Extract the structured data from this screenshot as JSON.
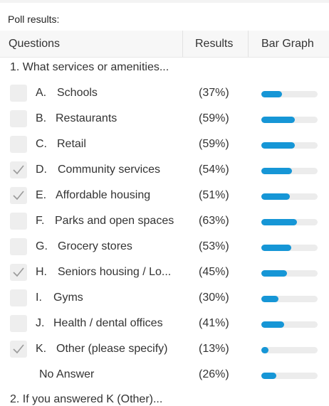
{
  "poll_title": "Poll results:",
  "headers": {
    "questions": "Questions",
    "results": "Results",
    "bar_graph": "Bar Graph"
  },
  "question1": "1.  What services or amenities...",
  "options": [
    {
      "letter": "A.",
      "label": "Schools",
      "percent_text": "(37%)",
      "value": 37,
      "checked": false
    },
    {
      "letter": "B.",
      "label": "Restaurants",
      "percent_text": "(59%)",
      "value": 59,
      "checked": false
    },
    {
      "letter": "C.",
      "label": "Retail",
      "percent_text": "(59%)",
      "value": 59,
      "checked": false
    },
    {
      "letter": "D.",
      "label": "Community services",
      "percent_text": "(54%)",
      "value": 54,
      "checked": true
    },
    {
      "letter": "E.",
      "label": "Affordable housing",
      "percent_text": "(51%)",
      "value": 51,
      "checked": true
    },
    {
      "letter": "F.",
      "label": "Parks and open spaces",
      "percent_text": "(63%)",
      "value": 63,
      "checked": false
    },
    {
      "letter": "G.",
      "label": "Grocery stores",
      "percent_text": "(53%)",
      "value": 53,
      "checked": false
    },
    {
      "letter": "H.",
      "label": "Seniors housing / Lo...",
      "percent_text": "(45%)",
      "value": 45,
      "checked": true
    },
    {
      "letter": "I.",
      "label": "Gyms",
      "percent_text": "(30%)",
      "value": 30,
      "checked": false
    },
    {
      "letter": "J.",
      "label": "Health / dental offices",
      "percent_text": "(41%)",
      "value": 41,
      "checked": false
    },
    {
      "letter": "K.",
      "label": "Other (please specify)",
      "percent_text": "(13%)",
      "value": 13,
      "checked": true
    }
  ],
  "no_answer": {
    "label": "No Answer",
    "percent_text": "(26%)",
    "value": 26
  },
  "question2": "2.  If you answered K (Other)...",
  "colors": {
    "bar": "#1696d6",
    "track": "#ececec",
    "checkbox_bg": "#eeeeee",
    "check_mark": "#9a9a9a"
  },
  "icons": {
    "check": "check-icon"
  }
}
